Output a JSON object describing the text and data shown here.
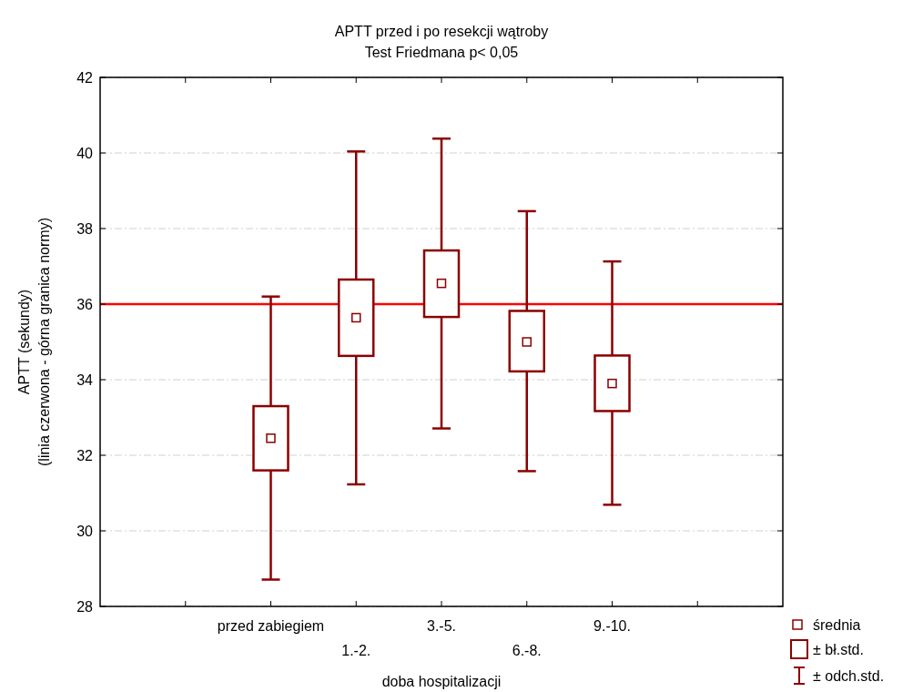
{
  "chart_data": {
    "type": "box",
    "title": "APTT przed i po resekcji wątroby",
    "subtitle": "Test Friedmana p< 0,05",
    "xlabel": "doba hospitalizacji",
    "ylabel": "APTT (sekundy)\n(linia czerwona - górna granica normy)",
    "categories": [
      null,
      "przed zabiegiem",
      "1.-2.",
      "3.-5.",
      "6.-8.",
      "9.-10.",
      null
    ],
    "color": "#8b0000",
    "boxes": [
      null,
      {
        "low": 28.71,
        "q1": 31.6,
        "median": 32.45,
        "q3": 33.3,
        "high": 36.2
      },
      {
        "low": 31.23,
        "q1": 34.63,
        "median": 35.64,
        "q3": 36.65,
        "high": 40.04
      },
      {
        "low": 32.71,
        "q1": 35.66,
        "median": 36.55,
        "q3": 37.42,
        "high": 40.38
      },
      {
        "low": 31.58,
        "q1": 34.22,
        "median": 35.0,
        "q3": 35.82,
        "high": 38.46
      },
      {
        "low": 30.69,
        "q1": 33.17,
        "median": 33.9,
        "q3": 34.64,
        "high": 37.13
      },
      null
    ],
    "ylim": [
      28,
      42
    ],
    "yticks": [
      28,
      30,
      32,
      34,
      36,
      38,
      40,
      42
    ],
    "grid": "y",
    "ref_lines": [
      {
        "axis": "y",
        "value": 36,
        "color": "#ff0000"
      }
    ],
    "annotations": [
      "średnia",
      "± bł.std.",
      "± odch.std."
    ]
  }
}
